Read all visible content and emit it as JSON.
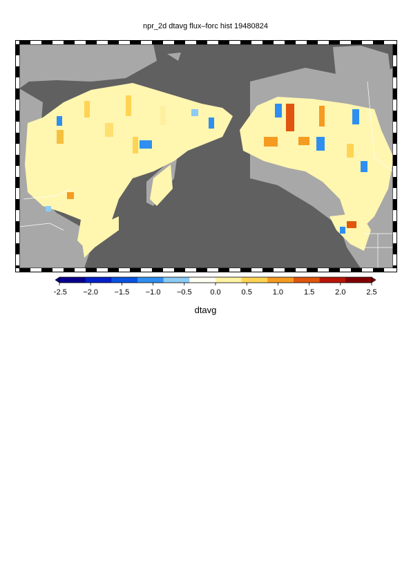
{
  "title": "npr_2d dtavg flux–forc hist 19480824",
  "colorbar": {
    "label": "dtavg",
    "ticks": [
      "−2.5",
      "−2.0",
      "−1.5",
      "−1.0",
      "−0.5",
      "0.0",
      "0.5",
      "1.0",
      "1.5",
      "2.0",
      "2.5"
    ],
    "range": [
      -2.5,
      2.5
    ],
    "colors": [
      "#08008a",
      "#0020c8",
      "#0a52e0",
      "#2f8ff0",
      "#8ccbf5",
      "#fffff2",
      "#fff3a4",
      "#ffd454",
      "#f59b22",
      "#e0560e",
      "#b81508",
      "#800000"
    ]
  },
  "map": {
    "ocean_color": "#606060",
    "land_color": "#a8a8a8",
    "border_color": "#ffffff"
  }
}
